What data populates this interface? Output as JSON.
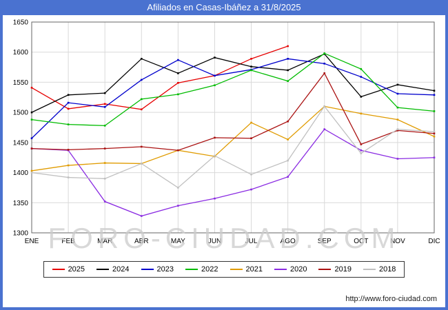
{
  "window": {
    "title": "Afiliados en Casas-Ibáñez a 31/8/2025",
    "title_bg": "#4a72d0",
    "title_color": "#ffffff"
  },
  "watermark": "FORO-CIUDAD.COM",
  "footer": {
    "source_url": "http://www.foro-ciudad.com"
  },
  "chart_data": {
    "type": "line",
    "title": "Afiliados en Casas-Ibáñez a 31/8/2025",
    "xlabel": "",
    "ylabel": "",
    "categories": [
      "ENE",
      "FEB",
      "MAR",
      "ABR",
      "MAY",
      "JUN",
      "JUL",
      "AGO",
      "SEP",
      "OCT",
      "NOV",
      "DIC"
    ],
    "ylim": [
      1300,
      1650
    ],
    "yticks": [
      1300,
      1350,
      1400,
      1450,
      1500,
      1550,
      1600,
      1650
    ],
    "grid": true,
    "grid_color": "#d9d9d9",
    "legend_position": "bottom",
    "series": [
      {
        "name": "2025",
        "color": "#e60000",
        "values": [
          1541,
          1506,
          1514,
          1505,
          1549,
          1561,
          1589,
          1610
        ]
      },
      {
        "name": "2024",
        "color": "#000000",
        "values": [
          1500,
          1529,
          1532,
          1589,
          1565,
          1591,
          1576,
          1570,
          1597,
          1526,
          1546,
          1536
        ]
      },
      {
        "name": "2023",
        "color": "#0000cc",
        "values": [
          1457,
          1516,
          1509,
          1554,
          1587,
          1561,
          1571,
          1589,
          1581,
          1559,
          1531,
          1529
        ]
      },
      {
        "name": "2022",
        "color": "#00bb00",
        "values": [
          1488,
          1480,
          1478,
          1522,
          1530,
          1545,
          1570,
          1552,
          1598,
          1572,
          1508,
          1502
        ]
      },
      {
        "name": "2021",
        "color": "#e09b00",
        "values": [
          1403,
          1412,
          1416,
          1415,
          1437,
          1427,
          1483,
          1455,
          1510,
          1498,
          1488,
          1460
        ]
      },
      {
        "name": "2020",
        "color": "#8a2be2",
        "values": [
          1440,
          1437,
          1352,
          1328,
          1345,
          1357,
          1372,
          1393,
          1472,
          1437,
          1423,
          1425
        ]
      },
      {
        "name": "2019",
        "color": "#aa1111",
        "values": [
          1440,
          1438,
          1440,
          1443,
          1437,
          1458,
          1457,
          1485,
          1565,
          1447,
          1470,
          1465
        ]
      },
      {
        "name": "2018",
        "color": "#c0c0c0",
        "values": [
          1400,
          1392,
          1390,
          1415,
          1375,
          1428,
          1397,
          1420,
          1510,
          1432,
          1472,
          1468
        ]
      }
    ]
  }
}
